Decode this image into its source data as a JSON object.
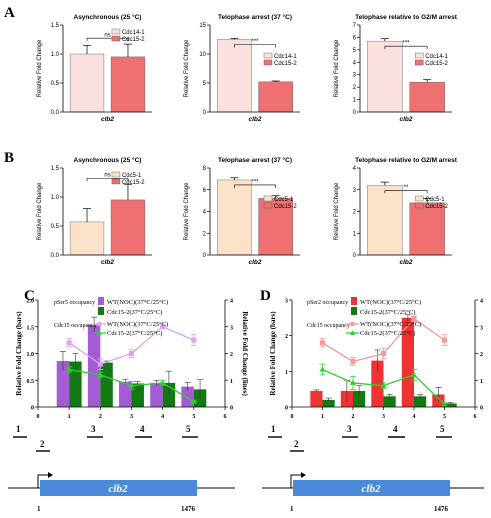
{
  "panels": {
    "A": "A",
    "B": "B",
    "C": "C",
    "D": "D"
  },
  "colors": {
    "a_first": "#fbe0e0",
    "a_second": "#ef7070",
    "b_first": "#fbe2c8",
    "b_second": "#ef7070",
    "c_wt": "#a35bd6",
    "c_mut": "#137a13",
    "c_wt_line": "#dfa0ef",
    "c_mut_line": "#33cc33",
    "d_wt": "#ee3333",
    "d_mut": "#137a13",
    "d_wt_line": "#f29a9a",
    "d_mut_line": "#33cc33",
    "gene": "#4a8ad8"
  },
  "chart_data": [
    {
      "id": "A1",
      "type": "bar",
      "title": "Asynchronous (25 °C)",
      "xlabel": "clb2",
      "ylabel": "Relative Fold Change",
      "ylim": [
        0,
        1.5
      ],
      "yticks": [
        "0.0",
        "0.5",
        "1.0",
        "1.5"
      ],
      "legend_position": "top-right",
      "series": [
        {
          "name": "Cdc14-1",
          "values": [
            1.0
          ],
          "err": [
            0.15
          ]
        },
        {
          "name": "Cdc15-2",
          "values": [
            0.95
          ],
          "err": [
            0.22
          ]
        }
      ],
      "annotation": "ns"
    },
    {
      "id": "A2",
      "type": "bar",
      "title": "Telophase arrest (37 °C)",
      "xlabel": "clb2",
      "ylabel": "Relative Fold Change",
      "ylim": [
        0,
        15
      ],
      "yticks": [
        "0",
        "5",
        "10",
        "15"
      ],
      "legend_position": "right",
      "series": [
        {
          "name": "Cdc14-1",
          "values": [
            12.5
          ],
          "err": [
            0.2
          ]
        },
        {
          "name": "Cdc15-2",
          "values": [
            5.2
          ],
          "err": [
            0.15
          ]
        }
      ],
      "annotation": "***"
    },
    {
      "id": "A3",
      "type": "bar",
      "title": "Telophase relative to G2/M arrest",
      "xlabel": "clb2",
      "ylabel": "Relative Fold Change",
      "ylim": [
        0,
        7
      ],
      "yticks": [
        "0",
        "1",
        "2",
        "3",
        "4",
        "5",
        "6",
        "7"
      ],
      "legend_position": "right",
      "series": [
        {
          "name": "Cdc14-1",
          "values": [
            5.7
          ],
          "err": [
            0.2
          ]
        },
        {
          "name": "Cdc15-2",
          "values": [
            2.4
          ],
          "err": [
            0.2
          ]
        }
      ],
      "annotation": "***"
    },
    {
      "id": "B1",
      "type": "bar",
      "title": "Asynchronous (25 °C)",
      "xlabel": "clb2",
      "ylabel": "Relative Fold Change",
      "ylim": [
        0,
        1.5
      ],
      "yticks": [
        "0.0",
        "0.5",
        "1.0",
        "1.5"
      ],
      "legend_position": "top-right",
      "series": [
        {
          "name": "Cdc5-1",
          "values": [
            0.57
          ],
          "err": [
            0.23
          ]
        },
        {
          "name": "Cdc15-2",
          "values": [
            0.95
          ],
          "err": [
            0.27
          ]
        }
      ],
      "annotation": "ns"
    },
    {
      "id": "B2",
      "type": "bar",
      "title": "Telophase arrest (37 °C)",
      "xlabel": "clb2",
      "ylabel": "Relative Fold Change",
      "ylim": [
        0,
        8
      ],
      "yticks": [
        "0",
        "2",
        "4",
        "6",
        "8"
      ],
      "legend_position": "right",
      "series": [
        {
          "name": "Cdc5-1",
          "values": [
            6.9
          ],
          "err": [
            0.2
          ]
        },
        {
          "name": "Cdc15-2",
          "values": [
            5.2
          ],
          "err": [
            0.25
          ]
        }
      ],
      "annotation": "***"
    },
    {
      "id": "B3",
      "type": "bar",
      "title": "Telophase relative to G2/M arrest",
      "xlabel": "clb2",
      "ylabel": "Relative Fold Change",
      "ylim": [
        0,
        4
      ],
      "yticks": [
        "0",
        "1",
        "2",
        "3",
        "4"
      ],
      "legend_position": "right",
      "series": [
        {
          "name": "Cdc5-1",
          "values": [
            3.2
          ],
          "err": [
            0.15
          ]
        },
        {
          "name": "Cdc15-2",
          "values": [
            2.4
          ],
          "err": [
            0.2
          ]
        }
      ],
      "annotation": "**"
    },
    {
      "id": "C",
      "type": "bar+line",
      "xlim": [
        0,
        6
      ],
      "xticks": [
        "0",
        "1",
        "2",
        "3",
        "4",
        "5",
        "6"
      ],
      "ylim_left": [
        0,
        2.0
      ],
      "yticks_left": [
        "0",
        "0.5",
        "1.0",
        "1.5",
        "2.0"
      ],
      "ylim_right": [
        0,
        4
      ],
      "yticks_right": [
        "0",
        "1",
        "2",
        "3",
        "4"
      ],
      "ylabel_left": "Relative Fold Change (bars)",
      "ylabel_right": "Relative Fold Change (lines)",
      "legend_groups": [
        "pSer5 occupancy",
        "Cdc15 occupancy"
      ],
      "bars": [
        {
          "name": "WT(NOC)(37°C/25°C)",
          "x": [
            1,
            2,
            3,
            4,
            5
          ],
          "values": [
            0.86,
            1.53,
            0.47,
            0.45,
            0.38
          ],
          "err": [
            0.18,
            0.15,
            0.05,
            0.05,
            0.08
          ]
        },
        {
          "name": "Cdc15-2(37°C/25°C)",
          "x": [
            1,
            2,
            3,
            4,
            5
          ],
          "values": [
            0.85,
            0.83,
            0.44,
            0.45,
            0.33
          ],
          "err": [
            0.15,
            0.03,
            0.04,
            0.22,
            0.18
          ]
        }
      ],
      "lines": [
        {
          "name": "WT(NOC)(37°C/25°C)",
          "x": [
            1,
            2,
            3,
            4,
            5
          ],
          "y": [
            2.4,
            1.6,
            2.0,
            3.0,
            2.5
          ],
          "err": [
            0.15,
            0.2,
            0.15,
            0.05,
            0.2
          ]
        },
        {
          "name": "Cdc15-2(37°C/25°C)",
          "x": [
            1,
            2,
            3,
            4,
            5
          ],
          "y": [
            1.4,
            1.2,
            0.8,
            0.9,
            0.2
          ],
          "err": [
            0.1,
            0.1,
            0.15,
            0.1,
            0.05
          ]
        }
      ]
    },
    {
      "id": "D",
      "type": "bar+line",
      "xlim": [
        0,
        6
      ],
      "xticks": [
        "0",
        "1",
        "2",
        "3",
        "4",
        "5",
        "6"
      ],
      "ylim_left": [
        0,
        3
      ],
      "yticks_left": [
        "0",
        "1",
        "2",
        "3"
      ],
      "ylim_right": [
        0,
        4
      ],
      "yticks_right": [
        "0",
        "1",
        "2",
        "3",
        "4"
      ],
      "ylabel_left": "Relative Fold Change (bars)",
      "ylabel_right": "Relative Fold Change (lines)",
      "legend_groups": [
        "pSer2 occupancy",
        "Cdc15 occupancy"
      ],
      "bars": [
        {
          "name": "WT(NOC)(37°C/25°C)",
          "x": [
            1,
            2,
            3,
            4,
            5
          ],
          "values": [
            0.45,
            0.45,
            1.3,
            2.5,
            0.35
          ],
          "err": [
            0.03,
            0.3,
            0.3,
            0.1,
            0.2
          ]
        },
        {
          "name": "Cdc15-2(37°C/25°C)",
          "x": [
            1,
            2,
            3,
            4,
            5
          ],
          "values": [
            0.2,
            0.45,
            0.3,
            0.3,
            0.1
          ],
          "err": [
            0.05,
            0.15,
            0.05,
            0.05,
            0.03
          ]
        }
      ],
      "lines": [
        {
          "name": "WT(NOC)(37°C/25°C)",
          "x": [
            1,
            2,
            3,
            4,
            5
          ],
          "y": [
            2.4,
            1.7,
            2.0,
            3.3,
            2.5
          ],
          "err": [
            0.15,
            0.15,
            0.2,
            0.1,
            0.2
          ]
        },
        {
          "name": "Cdc15-2(37°C/25°C)",
          "x": [
            1,
            2,
            3,
            4,
            5
          ],
          "y": [
            1.4,
            0.9,
            0.8,
            1.2,
            0.1
          ],
          "err": [
            0.2,
            0.25,
            0.1,
            0.2,
            0.05
          ]
        }
      ]
    }
  ],
  "amplicons": [
    "1",
    "2",
    "3",
    "4",
    "5"
  ],
  "gene": {
    "name": "clb2",
    "start": "1",
    "end": "1476"
  }
}
